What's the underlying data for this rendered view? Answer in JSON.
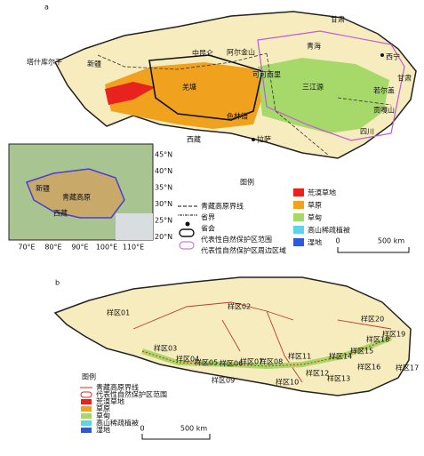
{
  "panel_a": {
    "label": "a",
    "places": [
      "甘肃",
      "青海",
      "西宁",
      "甘肃",
      "新疆",
      "塔什库尔干",
      "中昆仑",
      "阿尔金山",
      "可可西里",
      "羌塘",
      "三江源",
      "若尔盖",
      "贡嘎山",
      "色林错",
      "西藏",
      "拉萨",
      "四川"
    ],
    "inset": {
      "lat_labels": [
        "45°N",
        "40°N",
        "35°N",
        "30°N",
        "25°N",
        "20°N"
      ],
      "lon_labels": [
        "70°E",
        "80°E",
        "90°E",
        "100°E",
        "110°E"
      ],
      "places": [
        "青藏高原",
        "新疆",
        "西藏"
      ]
    },
    "legend": {
      "title": "图例",
      "lines": [
        "青藏高原界线",
        "省界",
        "省会",
        "代表性自然保护区范围",
        "代表性自然保护区周边区域"
      ],
      "classes": [
        {
          "name": "荒漠草地",
          "color": "#e8221c"
        },
        {
          "name": "草原",
          "color": "#f0a21e"
        },
        {
          "name": "草甸",
          "color": "#a6d96a"
        },
        {
          "name": "高山稀疏植被",
          "color": "#5fd3e8"
        },
        {
          "name": "湿地",
          "color": "#2c5ad8"
        }
      ]
    },
    "scale": [
      "0",
      "500 km"
    ]
  },
  "panel_b": {
    "label": "b",
    "samples": [
      "样区01",
      "样区02",
      "样区03",
      "样区04",
      "样区05",
      "样区06",
      "样区07",
      "样区08",
      "样区09",
      "样区10",
      "样区11",
      "样区12",
      "样区13",
      "样区14",
      "样区15",
      "样区16",
      "样区17",
      "样区18",
      "样区19",
      "样区20"
    ],
    "legend": {
      "title": "图例",
      "lines": [
        "青藏高原界线",
        "代表性自然保护区范围"
      ],
      "classes": [
        {
          "name": "荒漠草地",
          "color": "#e8221c"
        },
        {
          "name": "草原",
          "color": "#f0a21e"
        },
        {
          "name": "草甸",
          "color": "#a6d96a"
        },
        {
          "name": "高山稀疏植被",
          "color": "#5fd3e8"
        },
        {
          "name": "湿地",
          "color": "#2c5ad8"
        }
      ]
    },
    "scale": [
      "0",
      "500 km"
    ]
  }
}
